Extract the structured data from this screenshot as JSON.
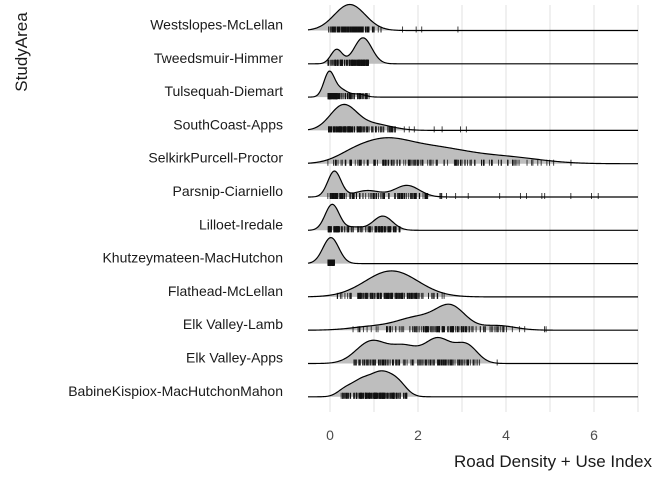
{
  "chart_data": {
    "type": "ridgeline",
    "xlabel": "Road Density + Use Index",
    "ylabel": "StudyArea",
    "xlim": [
      -0.5,
      7
    ],
    "x_ticks": [
      0,
      2,
      4,
      6
    ],
    "grid": "vertical",
    "fill_color": "#bebebe",
    "line_color": "#000000",
    "series": [
      {
        "name": "Westslopes-McLellan",
        "peaks": [
          [
            0.45,
            1.0,
            0.35
          ]
        ],
        "support": [
          -0.05,
          3.5
        ]
      },
      {
        "name": "Tweedsmuir-Himmer",
        "peaks": [
          [
            0.15,
            0.55,
            0.13
          ],
          [
            0.75,
            1.0,
            0.2
          ]
        ],
        "support": [
          -0.05,
          0.9
        ]
      },
      {
        "name": "Tulsequah-Diemart",
        "peaks": [
          [
            -0.02,
            1.0,
            0.12
          ],
          [
            0.25,
            0.3,
            0.15
          ],
          [
            0.65,
            0.12,
            0.15
          ]
        ],
        "support": [
          -0.05,
          0.9
        ]
      },
      {
        "name": "SouthCoast-Apps",
        "peaks": [
          [
            0.3,
            1.0,
            0.3
          ],
          [
            1.0,
            0.25,
            0.4
          ]
        ],
        "support": [
          -0.05,
          4.1
        ]
      },
      {
        "name": "SelkirkPurcell-Proctor",
        "peaks": [
          [
            0.5,
            0.12,
            0.4
          ],
          [
            1.2,
            0.35,
            0.55
          ],
          [
            2.3,
            0.3,
            0.8
          ],
          [
            4.0,
            0.12,
            0.8
          ]
        ],
        "support": [
          -0.05,
          6.5
        ]
      },
      {
        "name": "Parsnip-Ciarniello",
        "peaks": [
          [
            0.1,
            1.0,
            0.15
          ],
          [
            0.85,
            0.25,
            0.3
          ],
          [
            1.75,
            0.45,
            0.28
          ]
        ],
        "support": [
          -0.05,
          6.1
        ]
      },
      {
        "name": "Lilloet-Iredale",
        "peaks": [
          [
            0.05,
            1.0,
            0.16
          ],
          [
            0.55,
            0.12,
            0.2
          ],
          [
            1.2,
            0.55,
            0.22
          ]
        ],
        "support": [
          -0.05,
          1.6
        ]
      },
      {
        "name": "Khutzeymateen-MacHutchon",
        "peaks": [
          [
            0.02,
            1.0,
            0.18
          ]
        ],
        "support": [
          -0.05,
          0.1
        ]
      },
      {
        "name": "Flathead-McLellan",
        "peaks": [
          [
            1.4,
            1.0,
            0.6
          ]
        ],
        "support": [
          0.1,
          2.6
        ]
      },
      {
        "name": "Elk Valley-Lamb",
        "peaks": [
          [
            1.0,
            0.12,
            0.5
          ],
          [
            2.0,
            0.4,
            0.45
          ],
          [
            2.75,
            0.72,
            0.33
          ],
          [
            3.8,
            0.15,
            0.4
          ]
        ],
        "support": [
          0.4,
          5.0
        ]
      },
      {
        "name": "Elk Valley-Apps",
        "peaks": [
          [
            0.95,
            0.5,
            0.35
          ],
          [
            1.7,
            0.35,
            0.3
          ],
          [
            2.45,
            0.55,
            0.3
          ],
          [
            3.1,
            0.4,
            0.25
          ]
        ],
        "support": [
          0.5,
          5.2
        ]
      },
      {
        "name": "BabineKispiox-MacHutchonMahon",
        "peaks": [
          [
            0.35,
            0.25,
            0.18
          ],
          [
            0.7,
            0.45,
            0.2
          ],
          [
            1.15,
            0.8,
            0.25
          ],
          [
            1.55,
            0.4,
            0.2
          ]
        ],
        "support": [
          0.1,
          1.8
        ]
      }
    ]
  }
}
